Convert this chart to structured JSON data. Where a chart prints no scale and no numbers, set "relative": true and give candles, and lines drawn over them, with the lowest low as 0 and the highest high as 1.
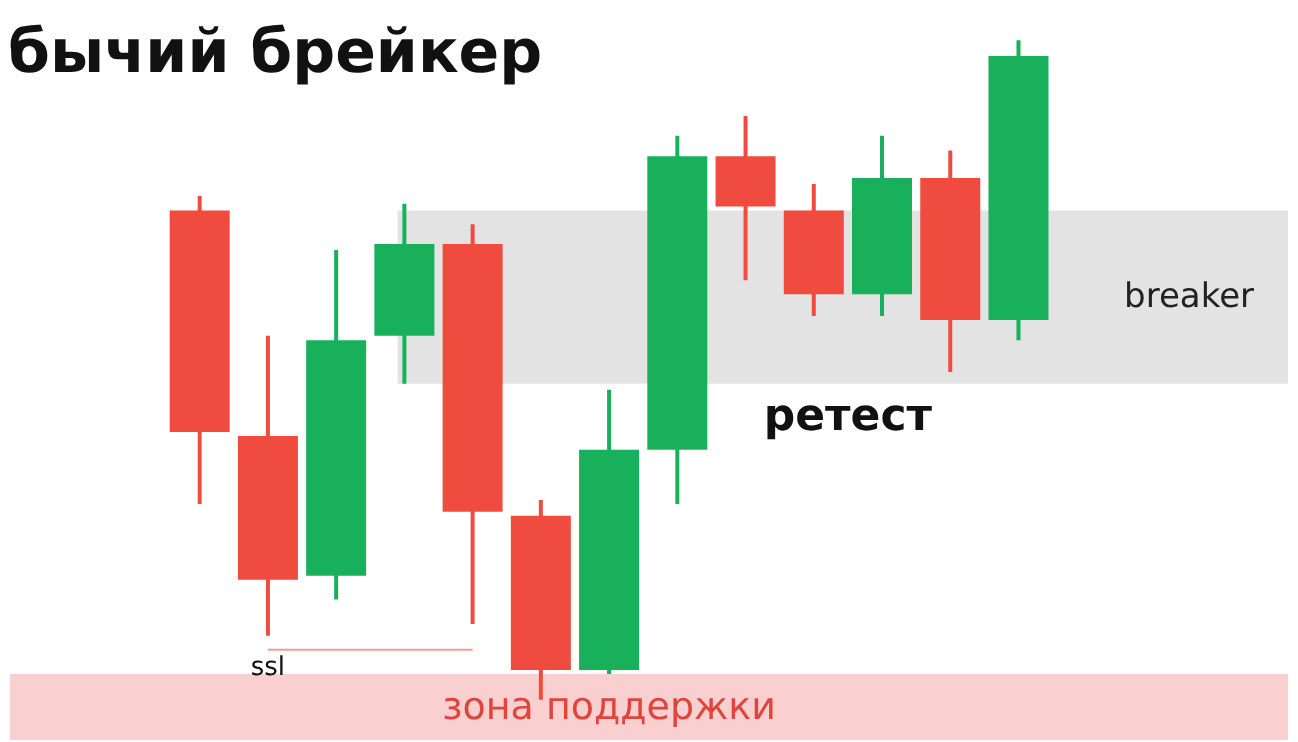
{
  "chart_data": {
    "type": "candlestick",
    "title": "бычий брейкер",
    "relative": true,
    "categories": [
      null,
      null,
      null,
      null,
      null,
      null,
      null,
      null,
      null,
      null,
      null,
      null,
      null
    ],
    "ohlc": [
      [
        0.742,
        0.764,
        0.297,
        0.406
      ],
      [
        0.4,
        0.552,
        0.097,
        0.182
      ],
      [
        0.188,
        0.682,
        0.152,
        0.545
      ],
      [
        0.552,
        0.752,
        0.479,
        0.691
      ],
      [
        0.691,
        0.721,
        0.115,
        0.285
      ],
      [
        0.279,
        0.303,
        0,
        0.045
      ],
      [
        0.045,
        0.47,
        0.039,
        0.379
      ],
      [
        0.379,
        0.855,
        0.297,
        0.824
      ],
      [
        0.824,
        0.885,
        0.636,
        0.748
      ],
      [
        0.742,
        0.782,
        0.582,
        0.615
      ],
      [
        0.615,
        0.855,
        0.582,
        0.791
      ],
      [
        0.791,
        0.833,
        0.497,
        0.576
      ],
      [
        0.576,
        1,
        0.545,
        0.976
      ]
    ],
    "colors": [
      "#ef4b3f",
      "#ef4b3f",
      "#18b05a",
      "#18b05a",
      "#ef4b3f",
      "#ef4b3f",
      "#18b05a",
      "#18b05a",
      "#ef4b3f",
      "#ef4b3f",
      "#18b05a",
      "#ef4b3f",
      "#18b05a"
    ],
    "series": [
      {
        "type": "line",
        "color": "#f29b96",
        "values": [
          null,
          0.076,
          0.076,
          0.076,
          0.076,
          null,
          null,
          null,
          null,
          null,
          null,
          null,
          null
        ]
      }
    ],
    "bands": [
      {
        "axis": "y",
        "from": 0.479,
        "to": 0.742,
        "label": "breaker",
        "color": "#e3e3e3"
      },
      {
        "axis": "y",
        "from": -0.061,
        "to": 0.039,
        "label": "зона поддержки",
        "color": "#f9cfcf"
      }
    ],
    "annotations": [
      "ssl",
      "ретест"
    ]
  }
}
